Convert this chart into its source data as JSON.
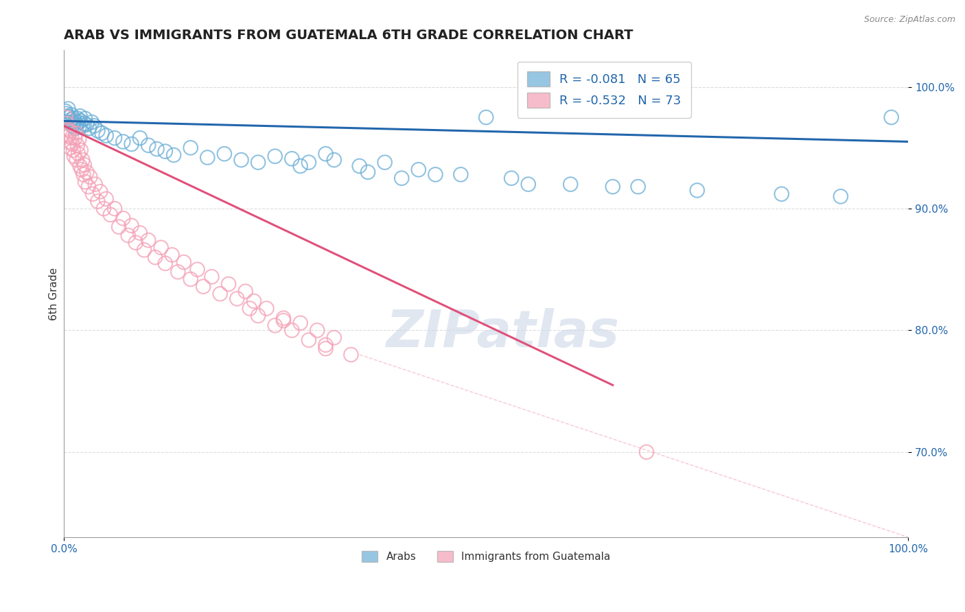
{
  "title": "ARAB VS IMMIGRANTS FROM GUATEMALA 6TH GRADE CORRELATION CHART",
  "source": "Source: ZipAtlas.com",
  "ylabel": "6th Grade",
  "xlim": [
    0.0,
    1.0
  ],
  "ylim": [
    0.63,
    1.03
  ],
  "yticks": [
    0.7,
    0.8,
    0.9,
    1.0
  ],
  "ytick_labels": [
    "70.0%",
    "80.0%",
    "90.0%",
    "100.0%"
  ],
  "xticks": [
    0.0,
    1.0
  ],
  "xtick_labels": [
    "0.0%",
    "100.0%"
  ],
  "legend_r_arab": "-0.081",
  "legend_n_arab": "65",
  "legend_r_guate": "-0.532",
  "legend_n_guate": "73",
  "color_arab": "#6baed6",
  "color_guate": "#f4a0b5",
  "color_line_arab": "#2166ac",
  "color_line_guate": "#e0507a",
  "watermark": "ZIPatlas",
  "arab_line_x0": 0.0,
  "arab_line_y0": 0.972,
  "arab_line_x1": 1.0,
  "arab_line_y1": 0.955,
  "guate_line_x0": 0.0,
  "guate_line_y0": 0.968,
  "guate_line_x1": 0.65,
  "guate_line_y1": 0.755,
  "ref_line_x0": 0.35,
  "ref_line_y0": 0.78,
  "ref_line_x1": 1.0,
  "ref_line_y1": 0.63,
  "arab_x": [
    0.002,
    0.003,
    0.004,
    0.005,
    0.006,
    0.007,
    0.008,
    0.009,
    0.01,
    0.011,
    0.012,
    0.013,
    0.014,
    0.015,
    0.016,
    0.017,
    0.018,
    0.019,
    0.02,
    0.022,
    0.024,
    0.025,
    0.027,
    0.03,
    0.033,
    0.036,
    0.04,
    0.045,
    0.05,
    0.06,
    0.07,
    0.08,
    0.09,
    0.1,
    0.11,
    0.12,
    0.13,
    0.15,
    0.17,
    0.19,
    0.21,
    0.23,
    0.25,
    0.27,
    0.29,
    0.31,
    0.35,
    0.38,
    0.42,
    0.47,
    0.53,
    0.6,
    0.68,
    0.75,
    0.85,
    0.92,
    0.28,
    0.32,
    0.36,
    0.4,
    0.44,
    0.55,
    0.65,
    0.5,
    0.98
  ],
  "arab_y": [
    0.98,
    0.978,
    0.976,
    0.982,
    0.975,
    0.971,
    0.973,
    0.977,
    0.968,
    0.974,
    0.97,
    0.972,
    0.966,
    0.969,
    0.974,
    0.971,
    0.967,
    0.976,
    0.972,
    0.968,
    0.97,
    0.974,
    0.969,
    0.966,
    0.971,
    0.968,
    0.964,
    0.962,
    0.96,
    0.958,
    0.955,
    0.953,
    0.958,
    0.952,
    0.949,
    0.947,
    0.944,
    0.95,
    0.942,
    0.945,
    0.94,
    0.938,
    0.943,
    0.941,
    0.938,
    0.945,
    0.935,
    0.938,
    0.932,
    0.928,
    0.925,
    0.92,
    0.918,
    0.915,
    0.912,
    0.91,
    0.935,
    0.94,
    0.93,
    0.925,
    0.928,
    0.92,
    0.918,
    0.975,
    0.975
  ],
  "guate_x": [
    0.002,
    0.003,
    0.004,
    0.005,
    0.006,
    0.007,
    0.008,
    0.009,
    0.01,
    0.011,
    0.012,
    0.013,
    0.014,
    0.015,
    0.016,
    0.017,
    0.018,
    0.019,
    0.02,
    0.021,
    0.022,
    0.023,
    0.024,
    0.025,
    0.027,
    0.029,
    0.031,
    0.034,
    0.037,
    0.04,
    0.043,
    0.047,
    0.05,
    0.055,
    0.06,
    0.065,
    0.07,
    0.076,
    0.08,
    0.085,
    0.09,
    0.095,
    0.1,
    0.108,
    0.115,
    0.12,
    0.128,
    0.135,
    0.142,
    0.15,
    0.158,
    0.165,
    0.175,
    0.185,
    0.195,
    0.205,
    0.215,
    0.22,
    0.225,
    0.23,
    0.24,
    0.25,
    0.26,
    0.27,
    0.28,
    0.29,
    0.3,
    0.31,
    0.32,
    0.34,
    0.26,
    0.31,
    0.69
  ],
  "guate_y": [
    0.975,
    0.97,
    0.965,
    0.96,
    0.955,
    0.95,
    0.963,
    0.958,
    0.953,
    0.948,
    0.943,
    0.958,
    0.962,
    0.94,
    0.952,
    0.945,
    0.957,
    0.935,
    0.948,
    0.932,
    0.94,
    0.928,
    0.936,
    0.922,
    0.93,
    0.918,
    0.926,
    0.912,
    0.92,
    0.906,
    0.914,
    0.9,
    0.908,
    0.895,
    0.9,
    0.885,
    0.892,
    0.878,
    0.886,
    0.872,
    0.88,
    0.866,
    0.874,
    0.86,
    0.868,
    0.855,
    0.862,
    0.848,
    0.856,
    0.842,
    0.85,
    0.836,
    0.844,
    0.83,
    0.838,
    0.826,
    0.832,
    0.818,
    0.824,
    0.812,
    0.818,
    0.804,
    0.81,
    0.8,
    0.806,
    0.792,
    0.8,
    0.788,
    0.794,
    0.78,
    0.808,
    0.785,
    0.7
  ]
}
